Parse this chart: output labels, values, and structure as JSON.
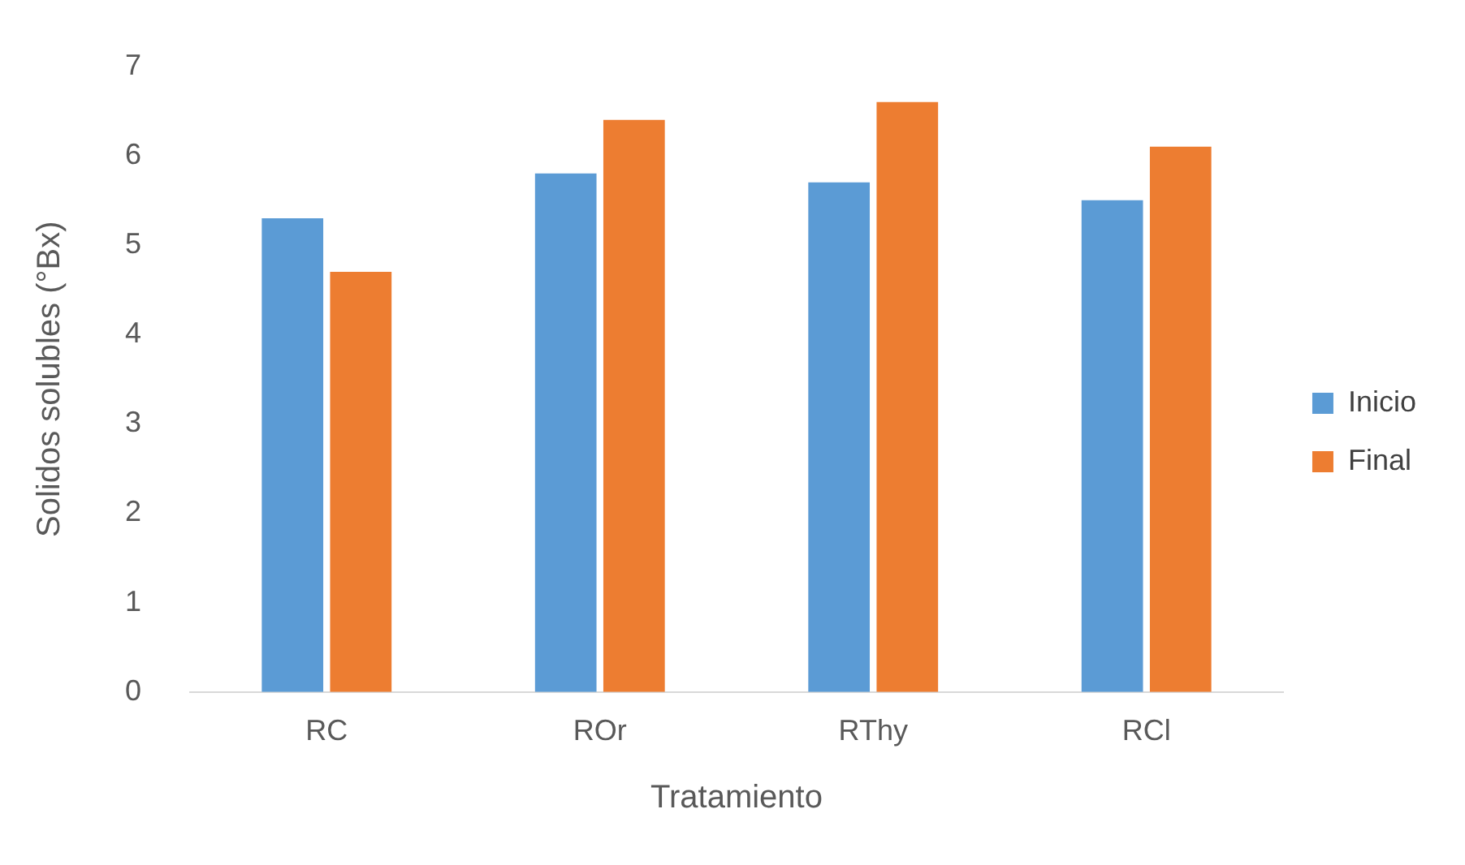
{
  "chart_data": {
    "type": "bar",
    "xlabel": "Tratamiento",
    "ylabel": "Solidos solubles (°Bx)",
    "categories": [
      "RC",
      "ROr",
      "RThy",
      "RCl"
    ],
    "series": [
      {
        "name": "Inicio",
        "color": "#5b9bd5",
        "values": [
          5.3,
          5.8,
          5.7,
          5.5
        ]
      },
      {
        "name": "Final",
        "color": "#ed7d31",
        "values": [
          4.7,
          6.4,
          6.6,
          6.1
        ]
      }
    ],
    "ylim": [
      0,
      7
    ],
    "yticks": [
      0,
      1,
      2,
      3,
      4,
      5,
      6,
      7
    ],
    "grid": false,
    "legend": "right"
  }
}
